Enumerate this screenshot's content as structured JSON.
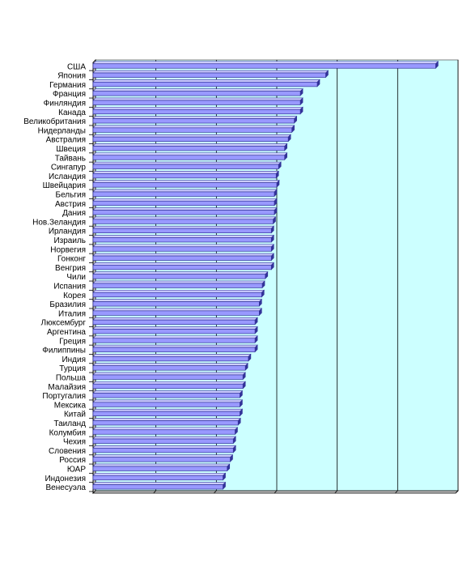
{
  "chart_data": {
    "type": "bar",
    "orientation": "horizontal",
    "style": "3d",
    "title": "",
    "xlabel": "",
    "ylabel": "",
    "xlim": [
      0,
      6
    ],
    "grid": true,
    "legend": "none",
    "colors": {
      "plot_background": "#ccffff",
      "bar_face": "#9999ff",
      "bar_dark": "#333399",
      "bar_top": "#ccccff",
      "axis": "#000000",
      "grid": "#000000"
    },
    "categories": [
      "США",
      "Япония",
      "Германия",
      "Франция",
      "Финляндия",
      "Канада",
      "Великобритания",
      "Нидерланды",
      "Австралия",
      "Швеция",
      "Тайвань",
      "Сингапур",
      "Исландия",
      "Швейцария",
      "Бельгия",
      "Австрия",
      "Дания",
      "Нов.Зеландия",
      "Ирландия",
      "Израиль",
      "Норвегия",
      "Гонконг",
      "Венгрия",
      "Чили",
      "Испания",
      "Корея",
      "Бразилия",
      "Италия",
      "Люксембург",
      "Аргентина",
      "Греция",
      "Филиппины",
      "Индия",
      "Турция",
      "Польша",
      "Малайзия",
      "Португалия",
      "Мексика",
      "Китай",
      "Таиланд",
      "Колумбия",
      "Чехия",
      "Словения",
      "Россия",
      "ЮАР",
      "Индонезия",
      "Венесуэла"
    ],
    "values": [
      5.67,
      3.85,
      3.71,
      3.43,
      3.43,
      3.43,
      3.33,
      3.29,
      3.23,
      3.17,
      3.17,
      3.07,
      3.03,
      3.04,
      3.0,
      3.0,
      3.0,
      2.98,
      2.95,
      2.95,
      2.95,
      2.95,
      2.95,
      2.85,
      2.8,
      2.79,
      2.75,
      2.75,
      2.68,
      2.68,
      2.68,
      2.68,
      2.57,
      2.52,
      2.48,
      2.48,
      2.43,
      2.43,
      2.43,
      2.4,
      2.35,
      2.32,
      2.32,
      2.27,
      2.22,
      2.15,
      2.15
    ]
  }
}
